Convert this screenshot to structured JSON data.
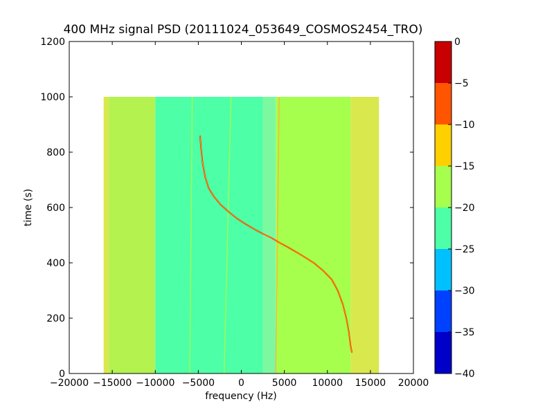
{
  "chart_data": {
    "type": "heatmap",
    "title": "400 MHz signal PSD (20111024_053649_COSMOS2454_TRO)",
    "xlabel": "frequency (Hz)",
    "ylabel": "time (s)",
    "xlim": [
      -20000,
      20000
    ],
    "ylim": [
      0,
      1200
    ],
    "xticks": [
      -20000,
      -15000,
      -10000,
      -5000,
      0,
      5000,
      10000,
      15000,
      20000
    ],
    "xtick_labels": [
      "−20000",
      "−15000",
      "−10000",
      "−5000",
      "0",
      "5000",
      "10000",
      "15000",
      "20000"
    ],
    "yticks": [
      0,
      200,
      400,
      600,
      800,
      1000,
      1200
    ],
    "ytick_labels": [
      "0",
      "200",
      "400",
      "600",
      "800",
      "1000",
      "1200"
    ],
    "data_extent": {
      "x": [
        -16000,
        16000
      ],
      "y": [
        0,
        1000
      ]
    },
    "colorbar": {
      "ticks": [
        0,
        -5,
        -10,
        -15,
        -20,
        -25,
        -30,
        -35,
        -40
      ],
      "tick_labels": [
        "0",
        "−5",
        "−10",
        "−15",
        "−20",
        "−25",
        "−30",
        "−35",
        "−40"
      ],
      "bins": [
        {
          "from": -40,
          "to": -35,
          "color": "#0000c8"
        },
        {
          "from": -35,
          "to": -30,
          "color": "#0040ff"
        },
        {
          "from": -30,
          "to": -25,
          "color": "#00c0ff"
        },
        {
          "from": -25,
          "to": -20,
          "color": "#4dffa6"
        },
        {
          "from": -20,
          "to": -15,
          "color": "#a6ff4d"
        },
        {
          "from": -15,
          "to": -10,
          "color": "#ffd000"
        },
        {
          "from": -10,
          "to": -5,
          "color": "#ff5500"
        },
        {
          "from": -5,
          "to": 0,
          "color": "#c80000"
        }
      ]
    },
    "bands": [
      {
        "x": [
          -16000,
          -15400
        ],
        "level": "-17.5",
        "color": "#d9e84d"
      },
      {
        "x": [
          -15400,
          -10000
        ],
        "level": "-17.5",
        "color": "#b4f24f"
      },
      {
        "x": [
          -10000,
          2500
        ],
        "level": "-22.5",
        "color": "#4dffa6"
      },
      {
        "x": [
          2500,
          4000
        ],
        "level": "-20",
        "color": "#7cf9a0"
      },
      {
        "x": [
          4000,
          12700
        ],
        "level": "-17.5",
        "color": "#a6ff4d"
      },
      {
        "x": [
          12700,
          16000
        ],
        "level": "-15",
        "color": "#d9e84d"
      }
    ],
    "faint_lines": [
      {
        "x": [
          -6000,
          -5700
        ],
        "color": "#a6ff4d"
      },
      {
        "x": [
          -2000,
          -1200
        ],
        "color": "#a6ff4d"
      },
      {
        "x": [
          4000,
          4400
        ],
        "color": "#ffb040"
      }
    ],
    "signal_trace": {
      "color": "#ff2a00",
      "points": [
        [
          -4800,
          860
        ],
        [
          -4700,
          820
        ],
        [
          -4500,
          760
        ],
        [
          -4200,
          710
        ],
        [
          -3800,
          670
        ],
        [
          -3200,
          640
        ],
        [
          -2400,
          610
        ],
        [
          -1500,
          585
        ],
        [
          -500,
          560
        ],
        [
          500,
          540
        ],
        [
          1500,
          522
        ],
        [
          2500,
          505
        ],
        [
          3500,
          490
        ],
        [
          4500,
          472
        ],
        [
          5500,
          455
        ],
        [
          6500,
          437
        ],
        [
          7500,
          418
        ],
        [
          8500,
          398
        ],
        [
          9500,
          372
        ],
        [
          10500,
          340
        ],
        [
          11200,
          300
        ],
        [
          11800,
          250
        ],
        [
          12200,
          200
        ],
        [
          12500,
          150
        ],
        [
          12700,
          100
        ],
        [
          12850,
          75
        ]
      ]
    }
  }
}
